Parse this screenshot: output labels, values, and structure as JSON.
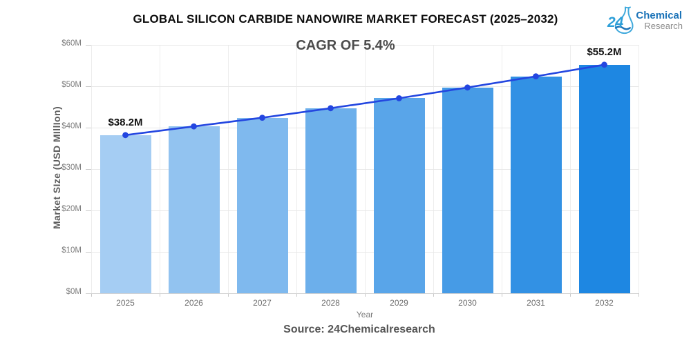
{
  "header": {
    "title": "GLOBAL SILICON CARBIDE NANOWIRE MARKET FORECAST (2025–2032)",
    "subtitle": "CAGR OF 5.4%",
    "logo": {
      "number": "24",
      "line1": "Chemical",
      "line2": "Research",
      "number_color": "#2E9FD8",
      "line1_color": "#1B73B8",
      "line2_color": "#8C8C8C"
    }
  },
  "chart_data": {
    "type": "bar",
    "title": "GLOBAL SILICON CARBIDE NANOWIRE MARKET FORECAST (2025–2032)",
    "subtitle": "CAGR OF 5.4%",
    "categories": [
      "2025",
      "2026",
      "2027",
      "2028",
      "2029",
      "2030",
      "2031",
      "2032"
    ],
    "values": [
      38.2,
      40.3,
      42.4,
      44.7,
      47.1,
      49.7,
      52.4,
      55.2
    ],
    "unit": "USD Million",
    "xlabel": "Year",
    "ylabel": "Market SIze (USD MIllIon)",
    "ylim": [
      0,
      60
    ],
    "ytick_labels": [
      "$0M",
      "$10M",
      "$20M",
      "$30M",
      "$40M",
      "$50M",
      "$60M"
    ],
    "grid": true,
    "bar_colors": [
      "#A5CDF3",
      "#92C3F0",
      "#7FB9EE",
      "#6CAFEB",
      "#59A5E9",
      "#469BE6",
      "#3291E4",
      "#1E87E2"
    ],
    "trend_line": {
      "type": "line",
      "values": [
        38.2,
        40.3,
        42.4,
        44.7,
        47.1,
        49.7,
        52.4,
        55.2
      ],
      "color": "#2346E0"
    },
    "annotations": [
      {
        "category": "2025",
        "text": "$38.2M"
      },
      {
        "category": "2032",
        "text": "$55.2M"
      }
    ]
  },
  "footer": {
    "source": "Source: 24Chemicalresearch"
  }
}
